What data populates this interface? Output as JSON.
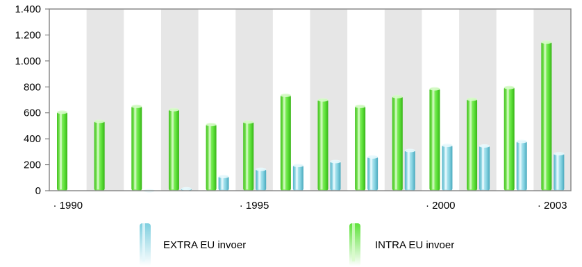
{
  "chart_data": {
    "type": "bar",
    "title": "",
    "xlabel": "",
    "ylabel": "",
    "ylim": [
      0,
      1400
    ],
    "yticks": [
      0,
      200,
      400,
      600,
      800,
      1000,
      1200,
      1400
    ],
    "ytick_labels": [
      "0",
      "200",
      "400",
      "600",
      "800",
      "1.000",
      "1.200",
      "1.400"
    ],
    "categories": [
      "1990",
      "1991",
      "1992",
      "1993",
      "1994",
      "1995",
      "1996",
      "1997",
      "1998",
      "1999",
      "2000",
      "2001",
      "2002",
      "2003"
    ],
    "xtick_labels": [
      {
        "index": 0,
        "label": "· 1990"
      },
      {
        "index": 5,
        "label": "· 1995"
      },
      {
        "index": 10,
        "label": "· 2000"
      },
      {
        "index": 13,
        "label": "· 2003"
      }
    ],
    "series": [
      {
        "name": "INTRA EU invoer",
        "color": "#5fe03a",
        "values": [
          610,
          540,
          655,
          630,
          515,
          535,
          740,
          705,
          655,
          730,
          790,
          710,
          800,
          1150
        ]
      },
      {
        "name": "EXTRA EU invoer",
        "color": "#7fcfdf",
        "values": [
          0,
          0,
          5,
          20,
          115,
          170,
          200,
          230,
          265,
          315,
          355,
          350,
          385,
          290
        ]
      }
    ],
    "grid": "alternating vertical bands",
    "legend_position": "bottom",
    "legend": [
      {
        "label": "EXTRA EU invoer",
        "icon": "cyan-bar-icon"
      },
      {
        "label": "INTRA EU invoer",
        "icon": "green-bar-icon"
      }
    ]
  }
}
